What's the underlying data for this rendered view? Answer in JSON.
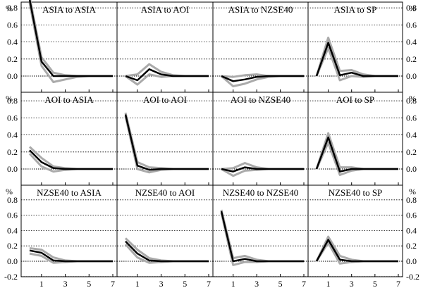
{
  "chart_data": {
    "type": "line",
    "unit_label": "%",
    "x": [
      0,
      1,
      2,
      3,
      4,
      5,
      6,
      7
    ],
    "x_tick_labels": [
      "1",
      "3",
      "5",
      "7"
    ],
    "x_tick_values": [
      1,
      3,
      5,
      7
    ],
    "xlim": [
      0,
      7.5
    ],
    "series_style": {
      "point_estimate_color": "#000000",
      "band_color": "#aaaaaa"
    },
    "rows": [
      {
        "ylim": [
          -0.2,
          1.0
        ],
        "y_tick_labels": [
          "0.0",
          "0.2",
          "0.4",
          "0.6",
          "0.8"
        ],
        "y_tick_values": [
          0.0,
          0.2,
          0.4,
          0.6,
          0.8
        ],
        "top_unit": "%",
        "panels": [
          {
            "title": "ASIA to ASIA",
            "mid": [
              0.9,
              0.17,
              0.0,
              0.0,
              0.0,
              0.0,
              0.0,
              0.0
            ],
            "upper": [
              0.93,
              0.22,
              0.04,
              0.01,
              0.0,
              0.0,
              0.0,
              0.0
            ],
            "lower": [
              0.86,
              0.12,
              -0.07,
              -0.04,
              -0.01,
              0.0,
              0.0,
              0.0
            ]
          },
          {
            "title": "ASIA to AOI",
            "mid": [
              0.0,
              -0.05,
              0.08,
              0.02,
              0.0,
              0.0,
              0.0,
              0.0
            ],
            "upper": [
              0.0,
              0.02,
              0.14,
              0.05,
              0.01,
              0.0,
              0.0,
              0.0
            ],
            "lower": [
              0.0,
              -0.1,
              0.02,
              -0.01,
              0.0,
              0.0,
              0.0,
              0.0
            ]
          },
          {
            "title": "ASIA to NZSE40",
            "mid": [
              0.0,
              -0.06,
              -0.04,
              -0.01,
              0.0,
              0.0,
              0.0,
              0.0
            ],
            "upper": [
              0.0,
              -0.01,
              0.01,
              0.02,
              0.0,
              0.0,
              0.0,
              0.0
            ],
            "lower": [
              0.0,
              -0.12,
              -0.09,
              -0.04,
              -0.01,
              0.0,
              0.0,
              0.0
            ]
          },
          {
            "title": "ASIA to SP",
            "mid": [
              0.0,
              0.39,
              0.01,
              0.04,
              0.0,
              0.0,
              0.0,
              0.0
            ],
            "upper": [
              0.0,
              0.45,
              0.06,
              0.07,
              0.02,
              0.0,
              0.0,
              0.0
            ],
            "lower": [
              0.0,
              0.33,
              -0.05,
              0.0,
              -0.01,
              0.0,
              0.0,
              0.0
            ]
          }
        ]
      },
      {
        "ylim": [
          -0.15,
          0.9
        ],
        "y_tick_labels": [
          "0.0",
          "0.2",
          "0.4",
          "0.6",
          "0.8"
        ],
        "y_tick_values": [
          0.0,
          0.2,
          0.4,
          0.6,
          0.8
        ],
        "top_unit": "%",
        "panels": [
          {
            "title": "AOI to ASIA",
            "mid": [
              0.22,
              0.08,
              0.01,
              0.0,
              0.0,
              0.0,
              0.0,
              0.0
            ],
            "upper": [
              0.26,
              0.13,
              0.03,
              0.01,
              0.0,
              0.0,
              0.0,
              0.0
            ],
            "lower": [
              0.18,
              0.03,
              -0.03,
              -0.01,
              0.0,
              0.0,
              0.0,
              0.0
            ]
          },
          {
            "title": "AOI to AOI",
            "mid": [
              0.64,
              0.04,
              -0.01,
              0.0,
              0.0,
              0.0,
              0.0,
              0.0
            ],
            "upper": [
              0.66,
              0.08,
              0.02,
              0.01,
              0.0,
              0.0,
              0.0,
              0.0
            ],
            "lower": [
              0.62,
              0.0,
              -0.04,
              -0.01,
              0.0,
              0.0,
              0.0,
              0.0
            ]
          },
          {
            "title": "AOI to NZSE40",
            "mid": [
              0.0,
              -0.03,
              0.02,
              0.0,
              0.0,
              0.0,
              0.0,
              0.0
            ],
            "upper": [
              0.0,
              0.01,
              0.07,
              0.02,
              0.0,
              0.0,
              0.0,
              0.0
            ],
            "lower": [
              0.0,
              -0.08,
              -0.02,
              -0.01,
              0.0,
              0.0,
              0.0,
              0.0
            ]
          },
          {
            "title": "AOI to SP",
            "mid": [
              0.0,
              0.37,
              -0.03,
              0.0,
              0.0,
              0.0,
              0.0,
              0.0
            ],
            "upper": [
              0.0,
              0.42,
              0.02,
              0.02,
              0.0,
              0.0,
              0.0,
              0.0
            ],
            "lower": [
              0.0,
              0.31,
              -0.07,
              -0.02,
              0.0,
              0.0,
              0.0,
              0.0
            ]
          }
        ]
      },
      {
        "ylim": [
          -0.2,
          0.9
        ],
        "y_tick_labels": [
          "-0.2",
          "0.0",
          "0.2",
          "0.4",
          "0.6",
          "0.8"
        ],
        "y_tick_values": [
          -0.2,
          0.0,
          0.2,
          0.4,
          0.6,
          0.8
        ],
        "top_unit": "%",
        "panels": [
          {
            "title": "NZSE40 to ASIA",
            "mid": [
              0.14,
              0.11,
              0.01,
              0.0,
              0.0,
              0.0,
              0.0,
              0.0
            ],
            "upper": [
              0.17,
              0.15,
              0.05,
              0.01,
              0.0,
              0.0,
              0.0,
              0.0
            ],
            "lower": [
              0.1,
              0.07,
              -0.02,
              -0.01,
              0.0,
              0.0,
              0.0,
              0.0
            ]
          },
          {
            "title": "NZSE40 to AOI",
            "mid": [
              0.26,
              0.1,
              0.01,
              0.0,
              0.0,
              0.0,
              0.0,
              0.0
            ],
            "upper": [
              0.3,
              0.15,
              0.04,
              0.01,
              0.0,
              0.0,
              0.0,
              0.0
            ],
            "lower": [
              0.22,
              0.05,
              -0.02,
              -0.01,
              0.0,
              0.0,
              0.0,
              0.0
            ]
          },
          {
            "title": "NZSE40 to NZSE40",
            "mid": [
              0.65,
              0.0,
              0.03,
              0.0,
              0.0,
              0.0,
              0.0,
              0.0
            ],
            "upper": [
              0.67,
              0.04,
              0.07,
              0.02,
              0.0,
              0.0,
              0.0,
              0.0
            ],
            "lower": [
              0.63,
              -0.05,
              -0.01,
              -0.01,
              0.0,
              0.0,
              0.0,
              0.0
            ]
          },
          {
            "title": "NZSE40 to SP",
            "mid": [
              0.0,
              0.28,
              0.02,
              0.0,
              0.0,
              0.0,
              0.0,
              0.0
            ],
            "upper": [
              0.0,
              0.32,
              0.07,
              0.02,
              0.0,
              0.0,
              0.0,
              0.0
            ],
            "lower": [
              0.0,
              0.24,
              -0.03,
              -0.01,
              0.0,
              0.0,
              0.0,
              0.0
            ]
          }
        ]
      }
    ]
  }
}
